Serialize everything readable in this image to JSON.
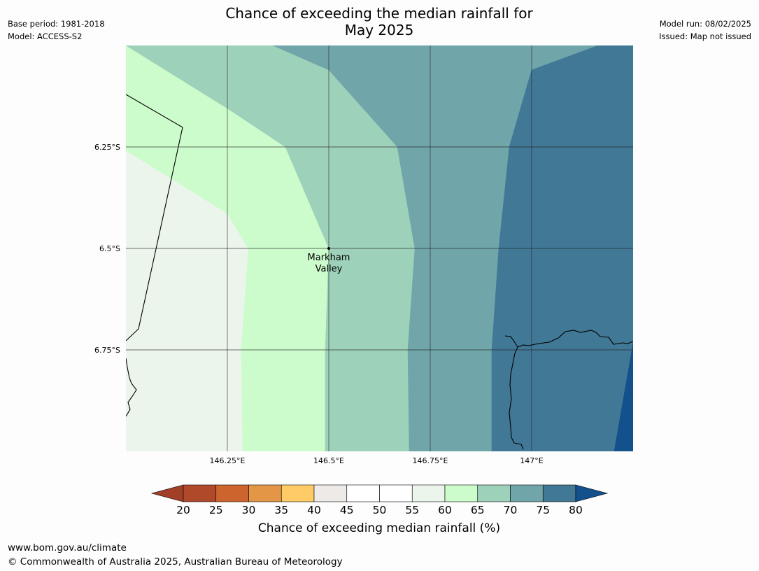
{
  "header": {
    "title_line1": "Chance of exceeding the median rainfall for",
    "title_line2": "May 2025",
    "base_period": "Base period: 1981-2018",
    "model": "Model: ACCESS-S2",
    "model_run": "Model run: 08/02/2025",
    "issued": "Issued: Map not issued"
  },
  "map": {
    "lat_labels": [
      "6.25°S",
      "6.5°S",
      "6.75°S"
    ],
    "lon_labels": [
      "146.25°E",
      "146.5°E",
      "146.75°E",
      "147°E"
    ],
    "place": {
      "name_line1": "Markham",
      "name_line2": "Valley",
      "lat": -6.5,
      "lon": 146.5
    },
    "zone_colors": [
      "#ebf5eb",
      "#ccfccc",
      "#9ed1ba",
      "#70a5aa",
      "#417896",
      "#13508c"
    ]
  },
  "colorbar": {
    "ticks": [
      "20",
      "25",
      "30",
      "35",
      "40",
      "45",
      "50",
      "55",
      "60",
      "65",
      "70",
      "75",
      "80"
    ],
    "colors": [
      "#b0492a",
      "#cd642e",
      "#e39746",
      "#fecb67",
      "#edeae7",
      "#ffffff",
      "#ffffff",
      "#ebf5eb",
      "#ccfccc",
      "#9ed1ba",
      "#70a5aa",
      "#417896"
    ],
    "under_color": "#a23f29",
    "over_color": "#13508c",
    "label": "Chance of exceeding median rainfall (%)"
  },
  "footer": {
    "url": "www.bom.gov.au/climate",
    "copyright": "© Commonwealth of Australia 2025, Australian Bureau of Meteorology"
  }
}
